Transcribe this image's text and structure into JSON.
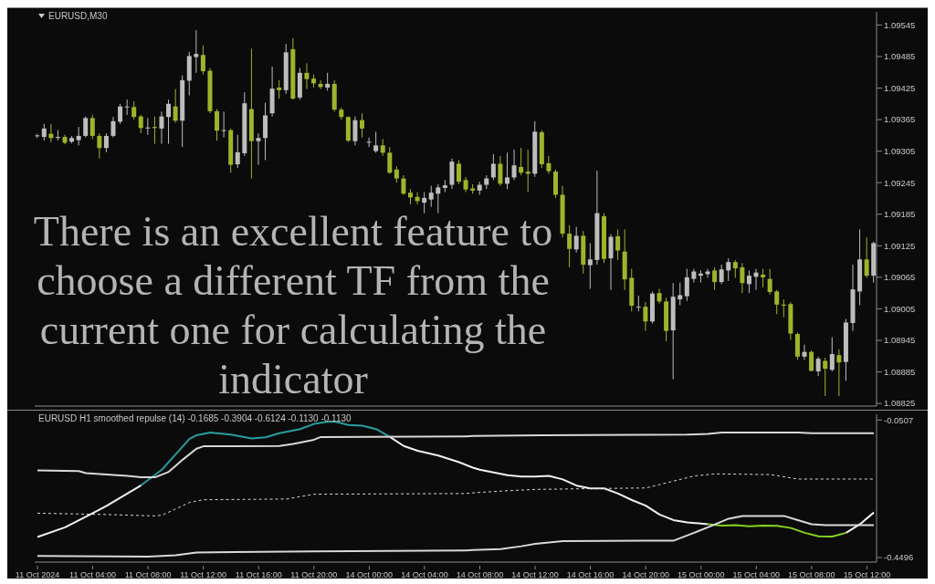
{
  "chart_data": [
    {
      "type": "candlestick",
      "title": "EURUSD,M30",
      "annotations": [
        "There is an excellent feature to choose a different TF from the current one for calculating the indicator"
      ],
      "categories": [
        null,
        null,
        null,
        null,
        null,
        null,
        null,
        null,
        null,
        null,
        null,
        null,
        null,
        null,
        null,
        null,
        null,
        null,
        null,
        null,
        null,
        null,
        null,
        null,
        null,
        null,
        null,
        null,
        null,
        null,
        null,
        null,
        null,
        null,
        null,
        null,
        null,
        null,
        null,
        null,
        null,
        null,
        null,
        null,
        null,
        null,
        null,
        null,
        null,
        null,
        null,
        null,
        null,
        null,
        null,
        null,
        null,
        null,
        null,
        null,
        null,
        null,
        null,
        null,
        null,
        null,
        null,
        null,
        null,
        null,
        null,
        null,
        null,
        null,
        null,
        null,
        null,
        null,
        null,
        null,
        null,
        null,
        null,
        null,
        null,
        null,
        null,
        null,
        null,
        null,
        null,
        null,
        null,
        null,
        null,
        null,
        null,
        null,
        null,
        null,
        null,
        null,
        null,
        null,
        null,
        null,
        null,
        null,
        null,
        null,
        null,
        null,
        null,
        null,
        null,
        null,
        null,
        null,
        null,
        null,
        null,
        null
      ],
      "ohlc": [
        [
          1.09334,
          1.09338,
          1.0933,
          1.09335
        ],
        [
          1.09332,
          1.09357,
          1.09325,
          1.09348
        ],
        [
          1.09338,
          1.09357,
          1.09322,
          1.0933
        ],
        [
          1.0933,
          1.09345,
          1.09325,
          1.09332
        ],
        [
          1.09332,
          1.09336,
          1.09318,
          1.09321
        ],
        [
          1.09323,
          1.09334,
          1.0932,
          1.0933
        ],
        [
          1.09326,
          1.09351,
          1.09316,
          1.09334
        ],
        [
          1.09334,
          1.09371,
          1.09331,
          1.09368
        ],
        [
          1.09368,
          1.09374,
          1.09328,
          1.09334
        ],
        [
          1.09334,
          1.09339,
          1.09291,
          1.09311
        ],
        [
          1.09311,
          1.09339,
          1.09303,
          1.09334
        ],
        [
          1.09334,
          1.0937,
          1.09331,
          1.09362
        ],
        [
          1.09361,
          1.09395,
          1.09357,
          1.0939
        ],
        [
          1.09389,
          1.09403,
          1.09374,
          1.0939
        ],
        [
          1.09389,
          1.094,
          1.09365,
          1.0937
        ],
        [
          1.09371,
          1.09374,
          1.09339,
          1.09349
        ],
        [
          1.09349,
          1.09368,
          1.09336,
          1.0935
        ],
        [
          1.09351,
          1.09371,
          1.09319,
          1.09349
        ],
        [
          1.09348,
          1.0938,
          1.09319,
          1.09371
        ],
        [
          1.0937,
          1.09403,
          1.09319,
          1.09395
        ],
        [
          1.0939,
          1.09423,
          1.09359,
          1.09363
        ],
        [
          1.09363,
          1.09449,
          1.09313,
          1.0944
        ],
        [
          1.09439,
          1.09494,
          1.09411,
          1.09486
        ],
        [
          1.09484,
          1.09535,
          1.09454,
          1.0949
        ],
        [
          1.09488,
          1.09506,
          1.09451,
          1.09457
        ],
        [
          1.09458,
          1.09463,
          1.09377,
          1.09381
        ],
        [
          1.09381,
          1.09385,
          1.09325,
          1.09344
        ],
        [
          1.09344,
          1.0938,
          1.09331,
          1.09345
        ],
        [
          1.09345,
          1.09348,
          1.09264,
          1.09279
        ],
        [
          1.0928,
          1.09336,
          1.09273,
          1.09303
        ],
        [
          1.09301,
          1.09417,
          1.09296,
          1.09396
        ],
        [
          1.09385,
          1.095,
          1.09253,
          1.09324
        ],
        [
          1.09324,
          1.09339,
          1.09279,
          1.0933
        ],
        [
          1.0933,
          1.09397,
          1.09288,
          1.09373
        ],
        [
          1.09377,
          1.09466,
          1.09371,
          1.09424
        ],
        [
          1.09426,
          1.0944,
          1.09405,
          1.09421
        ],
        [
          1.09421,
          1.09509,
          1.09414,
          1.09493
        ],
        [
          1.09499,
          1.0952,
          1.09403,
          1.09405
        ],
        [
          1.09407,
          1.09463,
          1.09403,
          1.09454
        ],
        [
          1.09454,
          1.09472,
          1.09423,
          1.09442
        ],
        [
          1.09443,
          1.09451,
          1.09426,
          1.09434
        ],
        [
          1.09433,
          1.0944,
          1.09423,
          1.09427
        ],
        [
          1.09426,
          1.09454,
          1.0942,
          1.09433
        ],
        [
          1.09433,
          1.0944,
          1.0938,
          1.09384
        ],
        [
          1.09384,
          1.09388,
          1.09365,
          1.0937
        ],
        [
          1.0937,
          1.09371,
          1.09322,
          1.09325
        ],
        [
          1.09324,
          1.09371,
          1.09316,
          1.09364
        ],
        [
          1.09364,
          1.09377,
          1.09331,
          1.09348
        ],
        [
          1.09322,
          1.09331,
          1.09313,
          1.09323
        ],
        [
          1.09305,
          1.09342,
          1.09302,
          1.09316
        ],
        [
          1.09316,
          1.09328,
          1.09296,
          1.09302
        ],
        [
          1.09302,
          1.09313,
          1.09262,
          1.09264
        ],
        [
          1.0927,
          1.09276,
          1.09245,
          1.09253
        ],
        [
          1.09253,
          1.09259,
          1.09222,
          1.09224
        ],
        [
          1.09226,
          1.09233,
          1.09204,
          1.09217
        ],
        [
          1.09218,
          1.09227,
          1.09204,
          1.0921
        ],
        [
          1.09207,
          1.09227,
          1.09187,
          1.09216
        ],
        [
          1.09213,
          1.09239,
          1.09199,
          1.09226
        ],
        [
          1.09224,
          1.09242,
          1.09187,
          1.09236
        ],
        [
          1.09235,
          1.0925,
          1.09227,
          1.0924
        ],
        [
          1.09241,
          1.09291,
          1.09233,
          1.09285
        ],
        [
          1.09281,
          1.09288,
          1.09242,
          1.09247
        ],
        [
          1.0925,
          1.09256,
          1.09227,
          1.09232
        ],
        [
          1.09234,
          1.09242,
          1.09224,
          1.0923
        ],
        [
          1.0923,
          1.09247,
          1.09222,
          1.09241
        ],
        [
          1.09241,
          1.09259,
          1.09233,
          1.09253
        ],
        [
          1.09255,
          1.09299,
          1.0925,
          1.09281
        ],
        [
          1.09281,
          1.09296,
          1.09239,
          1.09243
        ],
        [
          1.09243,
          1.09302,
          1.09233,
          1.09255
        ],
        [
          1.09255,
          1.09308,
          1.0925,
          1.09278
        ],
        [
          1.09275,
          1.09311,
          1.09259,
          1.09264
        ],
        [
          1.09266,
          1.09308,
          1.09227,
          1.09262
        ],
        [
          1.09262,
          1.09362,
          1.09256,
          1.09342
        ],
        [
          1.09341,
          1.09345,
          1.09273,
          1.0928
        ],
        [
          1.09282,
          1.09296,
          1.09262,
          1.09267
        ],
        [
          1.09266,
          1.0927,
          1.09216,
          1.09222
        ],
        [
          1.09222,
          1.09239,
          1.09141,
          1.09148
        ],
        [
          1.09148,
          1.09164,
          1.09084,
          1.09119
        ],
        [
          1.09118,
          1.09161,
          1.09112,
          1.09144
        ],
        [
          1.09144,
          1.09153,
          1.09072,
          1.09089
        ],
        [
          1.09088,
          1.0913,
          1.09043,
          1.09099
        ],
        [
          1.09098,
          1.09268,
          1.09089,
          1.09187
        ],
        [
          1.09181,
          1.09187,
          1.09092,
          1.091
        ],
        [
          1.09101,
          1.09147,
          1.09041,
          1.09142
        ],
        [
          1.09143,
          1.09156,
          1.09098,
          1.09116
        ],
        [
          1.09114,
          1.09156,
          1.09041,
          1.09061
        ],
        [
          1.09064,
          1.09081,
          1.09,
          1.09011
        ],
        [
          1.09008,
          1.0903,
          1.09,
          1.09009
        ],
        [
          1.09009,
          1.09018,
          1.08963,
          1.08981
        ],
        [
          1.08981,
          1.09038,
          1.08977,
          1.09034
        ],
        [
          1.09035,
          1.09043,
          1.09015,
          1.09019
        ],
        [
          1.09019,
          1.09026,
          1.08943,
          1.08963
        ],
        [
          1.08964,
          1.09054,
          1.08871,
          1.09028
        ],
        [
          1.09023,
          1.09055,
          1.09012,
          1.09031
        ],
        [
          1.09029,
          1.09081,
          1.0902,
          1.09065
        ],
        [
          1.09062,
          1.09081,
          1.09055,
          1.09076
        ],
        [
          1.09068,
          1.09078,
          1.09055,
          1.09072
        ],
        [
          1.09071,
          1.09081,
          1.09064,
          1.09076
        ],
        [
          1.09078,
          1.09084,
          1.09041,
          1.09056
        ],
        [
          1.09056,
          1.09089,
          1.09052,
          1.0908
        ],
        [
          1.09078,
          1.09101,
          1.09058,
          1.09094
        ],
        [
          1.09094,
          1.09098,
          1.09064,
          1.09082
        ],
        [
          1.09084,
          1.09092,
          1.09035,
          1.09054
        ],
        [
          1.09052,
          1.09078,
          1.09035,
          1.09068
        ],
        [
          1.09066,
          1.09081,
          1.09041,
          1.09074
        ],
        [
          1.0907,
          1.09081,
          1.09046,
          1.09065
        ],
        [
          1.09062,
          1.09081,
          1.09032,
          1.09037
        ],
        [
          1.09038,
          1.09041,
          1.08995,
          1.09013
        ],
        [
          1.09013,
          1.09023,
          1.08989,
          1.09011
        ],
        [
          1.09014,
          1.09018,
          1.08946,
          1.08958
        ],
        [
          1.08957,
          1.0896,
          1.08908,
          1.08914
        ],
        [
          1.08914,
          1.08937,
          1.08908,
          1.08923
        ],
        [
          1.08923,
          1.08926,
          1.08886,
          1.08887
        ],
        [
          1.08886,
          1.08914,
          1.08877,
          1.0891
        ],
        [
          1.08906,
          1.08912,
          1.08839,
          1.08891
        ],
        [
          1.08889,
          1.08951,
          1.08886,
          1.08919
        ],
        [
          1.08917,
          1.08928,
          1.08839,
          1.08903
        ],
        [
          1.08904,
          1.08986,
          1.08868,
          1.08979
        ],
        [
          1.08978,
          1.09089,
          1.08963,
          1.09042
        ],
        [
          1.09038,
          1.09156,
          1.09012,
          1.09099
        ],
        [
          1.09099,
          1.09141,
          1.09064,
          1.09068
        ],
        [
          1.09068,
          1.09133,
          1.09055,
          1.0913
        ]
      ],
      "colors": [
        "#bdbdbd",
        "#bdbdbd",
        "#9db52a",
        "#bdbdbd",
        "#9db52a",
        "#bdbdbd",
        "#bdbdbd",
        "#bdbdbd",
        "#9db52a",
        "#9db52a",
        "#bdbdbd",
        "#bdbdbd",
        "#bdbdbd",
        "#bdbdbd",
        "#9db52a",
        "#9db52a",
        "#bdbdbd",
        "#9db52a",
        "#bdbdbd",
        "#bdbdbd",
        "#9db52a",
        "#bdbdbd",
        "#bdbdbd",
        "#bdbdbd",
        "#9db52a",
        "#9db52a",
        "#9db52a",
        "#bdbdbd",
        "#9db52a",
        "#bdbdbd",
        "#bdbdbd",
        "#9db52a",
        "#bdbdbd",
        "#bdbdbd",
        "#bdbdbd",
        "#9db52a",
        "#bdbdbd",
        "#9db52a",
        "#bdbdbd",
        "#9db52a",
        "#9db52a",
        "#9db52a",
        "#bdbdbd",
        "#9db52a",
        "#9db52a",
        "#9db52a",
        "#bdbdbd",
        "#9db52a",
        "#bdbdbd",
        "#bdbdbd",
        "#9db52a",
        "#9db52a",
        "#9db52a",
        "#9db52a",
        "#9db52a",
        "#9db52a",
        "#bdbdbd",
        "#bdbdbd",
        "#bdbdbd",
        "#bdbdbd",
        "#bdbdbd",
        "#9db52a",
        "#9db52a",
        "#9db52a",
        "#bdbdbd",
        "#bdbdbd",
        "#bdbdbd",
        "#9db52a",
        "#bdbdbd",
        "#bdbdbd",
        "#9db52a",
        "#9db52a",
        "#bdbdbd",
        "#9db52a",
        "#9db52a",
        "#9db52a",
        "#9db52a",
        "#9db52a",
        "#bdbdbd",
        "#9db52a",
        "#bdbdbd",
        "#bdbdbd",
        "#9db52a",
        "#bdbdbd",
        "#9db52a",
        "#9db52a",
        "#9db52a",
        "#bdbdbd",
        "#9db52a",
        "#bdbdbd",
        "#9db52a",
        "#9db52a",
        "#bdbdbd",
        "#bdbdbd",
        "#bdbdbd",
        "#bdbdbd",
        "#bdbdbd",
        "#bdbdbd",
        "#9db52a",
        "#bdbdbd",
        "#bdbdbd",
        "#9db52a",
        "#9db52a",
        "#bdbdbd",
        "#bdbdbd",
        "#9db52a",
        "#9db52a",
        "#9db52a",
        "#9db52a",
        "#9db52a",
        "#9db52a",
        "#bdbdbd",
        "#9db52a",
        "#bdbdbd",
        "#9db52a",
        "#bdbdbd",
        "#9db52a",
        "#bdbdbd",
        "#bdbdbd",
        "#bdbdbd",
        "#9db52a",
        "#bdbdbd"
      ],
      "ylim": [
        1.0882,
        1.0957
      ],
      "yticks": [
        1.08825,
        1.08885,
        1.08945,
        1.09005,
        1.09065,
        1.09125,
        1.09185,
        1.09245,
        1.09305,
        1.09365,
        1.09425,
        1.09485,
        1.09545
      ],
      "tick_labels": "y"
    },
    {
      "type": "line",
      "title": "EURUSD H1 smoothed repulse (14) -0.1685 -0.3904 -0.6124 -0.1130 -0.1130",
      "categories": [
        "11 Oct 2024",
        null,
        null,
        null,
        null,
        null,
        null,
        null,
        "11 Oct 04:00",
        null,
        null,
        null,
        null,
        null,
        null,
        null,
        "11 Oct 08:00",
        null,
        null,
        null,
        null,
        null,
        null,
        null,
        "11 Oct 12:00",
        null,
        null,
        null,
        null,
        null,
        null,
        null,
        "11 Oct 16:00",
        null,
        null,
        null,
        null,
        null,
        null,
        null,
        "11 Oct 20:00",
        null,
        null,
        null,
        null,
        null,
        null,
        null,
        "14 Oct 00:00",
        null,
        null,
        null,
        null,
        null,
        null,
        null,
        "14 Oct 04:00",
        null,
        null,
        null,
        null,
        null,
        null,
        null,
        "14 Oct 08:00",
        null,
        null,
        null,
        null,
        null,
        null,
        null,
        "14 Oct 12:00",
        null,
        null,
        null,
        null,
        null,
        null,
        null,
        "14 Oct 16:00",
        null,
        null,
        null,
        null,
        null,
        null,
        null,
        "14 Oct 20:00",
        null,
        null,
        null,
        null,
        null,
        null,
        null,
        "15 Oct 00:00",
        null,
        null,
        null,
        null,
        null,
        null,
        null,
        "15 Oct 04:00",
        null,
        null,
        null,
        null,
        null,
        null,
        null,
        "15 Oct 08:00",
        null,
        null,
        null,
        null,
        null,
        null,
        null,
        "15 Oct 12:00",
        null
      ],
      "series": [
        {
          "color": "#f0f0f0",
          "values": [
            -0.39,
            null,
            null,
            null,
            -0.362,
            null,
            null,
            null,
            -0.321,
            null,
            -0.3,
            null,
            -0.276,
            null,
            null,
            -0.24,
            null,
            null,
            null,
            null,
            null,
            null,
            null,
            null,
            null,
            null,
            null,
            null,
            null,
            null,
            null,
            null,
            null,
            null,
            null,
            null,
            null,
            null,
            null,
            null,
            null,
            null,
            null,
            null,
            null,
            null,
            null,
            null,
            null,
            null,
            null,
            null,
            null,
            null,
            null,
            null,
            null,
            null,
            null,
            null,
            null,
            null,
            null,
            null,
            null,
            null,
            null,
            null,
            null,
            null,
            null,
            null,
            null,
            null,
            null,
            null,
            null,
            null,
            null,
            null,
            null,
            null,
            null,
            null,
            null,
            null,
            null,
            null,
            null,
            null,
            null,
            null,
            null,
            null,
            null,
            null,
            null,
            null,
            null,
            null,
            null,
            null,
            null,
            null,
            null,
            null,
            null,
            null,
            null,
            null,
            null,
            null,
            null,
            null,
            null,
            null,
            null,
            null,
            null,
            null,
            null,
            null
          ]
        },
        {
          "color": "#2a9d9d",
          "values": [
            null,
            null,
            null,
            null,
            null,
            null,
            null,
            null,
            null,
            null,
            null,
            null,
            null,
            null,
            null,
            -0.24,
            null,
            null,
            -0.195,
            null,
            -0.15,
            null,
            -0.105,
            -0.095,
            null,
            -0.087,
            null,
            null,
            -0.093,
            null,
            null,
            -0.104,
            null,
            -0.101,
            null,
            -0.089,
            null,
            null,
            -0.077,
            null,
            -0.062,
            null,
            -0.056,
            -0.055,
            null,
            -0.065,
            null,
            -0.067,
            null,
            -0.077,
            null,
            -0.1,
            null,
            null,
            null,
            null,
            null,
            null,
            null,
            null,
            null,
            null,
            null,
            null,
            null,
            null,
            null,
            null,
            null,
            null,
            null,
            null,
            null,
            null,
            null,
            null,
            null,
            null,
            null,
            null,
            null,
            null,
            null,
            null,
            null,
            null,
            null,
            null,
            null,
            null,
            null,
            null,
            null,
            null,
            null,
            null,
            null,
            null,
            null,
            null,
            null,
            null,
            null,
            null,
            null,
            null,
            null,
            null,
            null,
            null,
            null,
            null,
            null,
            null,
            null,
            null,
            null,
            null,
            null,
            null,
            null,
            null
          ]
        },
        {
          "color": "#f0f0f0",
          "values": [
            null,
            null,
            null,
            null,
            null,
            null,
            null,
            null,
            null,
            null,
            null,
            null,
            null,
            null,
            null,
            null,
            null,
            null,
            null,
            null,
            null,
            null,
            null,
            null,
            null,
            null,
            null,
            null,
            null,
            null,
            null,
            null,
            null,
            null,
            null,
            null,
            null,
            null,
            null,
            null,
            null,
            null,
            null,
            null,
            null,
            null,
            null,
            null,
            null,
            null,
            null,
            -0.1,
            null,
            -0.126,
            null,
            -0.14,
            null,
            null,
            -0.154,
            null,
            null,
            -0.173,
            null,
            -0.189,
            -0.195,
            null,
            -0.203,
            null,
            -0.211,
            null,
            -0.215,
            null,
            -0.215,
            null,
            -0.213,
            null,
            -0.223,
            null,
            -0.241,
            null,
            -0.249,
            null,
            -0.249,
            null,
            -0.264,
            null,
            -0.283,
            null,
            -0.299,
            null,
            -0.325,
            null,
            -0.341,
            null,
            -0.348,
            null,
            -0.351,
            -0.353,
            null,
            null,
            null,
            null,
            null,
            null,
            null,
            null,
            null,
            null,
            null,
            null,
            null,
            null,
            null,
            null,
            null,
            null,
            null,
            null,
            null,
            null,
            null,
            null
          ]
        },
        {
          "color": "#86d21e",
          "values": [
            null,
            null,
            null,
            null,
            null,
            null,
            null,
            null,
            null,
            null,
            null,
            null,
            null,
            null,
            null,
            null,
            null,
            null,
            null,
            null,
            null,
            null,
            null,
            null,
            null,
            null,
            null,
            null,
            null,
            null,
            null,
            null,
            null,
            null,
            null,
            null,
            null,
            null,
            null,
            null,
            null,
            null,
            null,
            null,
            null,
            null,
            null,
            null,
            null,
            null,
            null,
            null,
            null,
            null,
            null,
            null,
            null,
            null,
            null,
            null,
            null,
            null,
            null,
            null,
            null,
            null,
            null,
            null,
            null,
            null,
            null,
            null,
            null,
            null,
            null,
            null,
            null,
            null,
            null,
            null,
            null,
            null,
            null,
            null,
            null,
            null,
            null,
            null,
            null,
            null,
            null,
            null,
            null,
            null,
            null,
            null,
            null,
            -0.353,
            null,
            -0.357,
            null,
            -0.356,
            null,
            -0.359,
            null,
            -0.357,
            null,
            -0.358,
            null,
            -0.364,
            null,
            -0.378,
            null,
            -0.388,
            null,
            -0.389,
            null,
            -0.378,
            null,
            null,
            null,
            null
          ]
        },
        {
          "color": "#f0f0f0",
          "values": [
            null,
            null,
            null,
            null,
            null,
            null,
            null,
            null,
            null,
            null,
            null,
            null,
            null,
            null,
            null,
            null,
            null,
            null,
            null,
            null,
            null,
            null,
            null,
            null,
            null,
            null,
            null,
            null,
            null,
            null,
            null,
            null,
            null,
            null,
            null,
            null,
            null,
            null,
            null,
            null,
            null,
            null,
            null,
            null,
            null,
            null,
            null,
            null,
            null,
            null,
            null,
            null,
            null,
            null,
            null,
            null,
            null,
            null,
            null,
            null,
            null,
            null,
            null,
            null,
            null,
            null,
            null,
            null,
            null,
            null,
            null,
            null,
            null,
            null,
            null,
            null,
            null,
            null,
            null,
            null,
            null,
            null,
            null,
            null,
            null,
            null,
            null,
            null,
            null,
            null,
            null,
            null,
            null,
            null,
            null,
            null,
            null,
            null,
            null,
            null,
            null,
            null,
            null,
            null,
            null,
            null,
            null,
            null,
            null,
            null,
            null,
            null,
            null,
            null,
            null,
            null,
            null,
            -0.378,
            null,
            -0.353,
            null,
            -0.319
          ]
        },
        {
          "color": "#d8d8d8",
          "values": [
            -0.197,
            null,
            null,
            null,
            null,
            null,
            -0.199,
            -0.205,
            null,
            null,
            null,
            null,
            null,
            -0.213,
            null,
            -0.217,
            null,
            -0.217,
            null,
            -0.201,
            null,
            -0.166,
            null,
            -0.134,
            -0.127,
            null,
            null,
            null,
            null,
            null,
            null,
            null,
            null,
            null,
            null,
            -0.126,
            null,
            -0.12,
            null,
            null,
            -0.108,
            -0.1,
            null,
            null,
            null,
            null,
            null,
            null,
            null,
            null,
            null,
            null,
            null,
            null,
            null,
            null,
            null,
            null,
            null,
            null,
            null,
            null,
            -0.098,
            -0.097,
            null,
            null,
            null,
            null,
            null,
            null,
            null,
            null,
            null,
            -0.095,
            null,
            null,
            null,
            null,
            null,
            null,
            null,
            null,
            null,
            null,
            null,
            null,
            null,
            null,
            null,
            null,
            null,
            null,
            null,
            null,
            -0.093,
            null,
            null,
            -0.091,
            null,
            -0.087,
            null,
            null,
            null,
            null,
            null,
            null,
            null,
            null,
            null,
            null,
            -0.087,
            null,
            -0.089,
            null,
            null,
            null,
            null,
            null,
            null,
            null,
            null,
            -0.089
          ]
        },
        {
          "color": "#d8d8d8",
          "line_style": "dashed",
          "values": [
            -0.321,
            null,
            null,
            null,
            null,
            null,
            null,
            null,
            null,
            null,
            -0.325,
            null,
            null,
            null,
            null,
            null,
            null,
            -0.329,
            -0.327,
            null,
            -0.309,
            null,
            -0.29,
            null,
            -0.282,
            null,
            null,
            null,
            null,
            null,
            null,
            null,
            null,
            null,
            null,
            null,
            -0.28,
            null,
            null,
            null,
            -0.266,
            null,
            null,
            null,
            null,
            null,
            null,
            null,
            null,
            null,
            null,
            null,
            null,
            null,
            null,
            null,
            null,
            null,
            null,
            null,
            null,
            null,
            -0.264,
            -0.262,
            null,
            null,
            null,
            -0.257,
            null,
            null,
            null,
            null,
            -0.252,
            null,
            null,
            null,
            null,
            null,
            null,
            null,
            null,
            null,
            null,
            null,
            null,
            null,
            null,
            -0.248,
            -0.248,
            null,
            -0.238,
            null,
            null,
            -0.223,
            null,
            -0.213,
            null,
            null,
            -0.207,
            null,
            null,
            null,
            null,
            null,
            null,
            null,
            -0.209,
            null,
            null,
            null,
            -0.222,
            null,
            null,
            null,
            null,
            null,
            null,
            null,
            null,
            null,
            null,
            -0.222
          ]
        },
        {
          "color": "#d8d8d8",
          "values": [
            -0.445,
            null,
            null,
            null,
            null,
            null,
            null,
            null,
            null,
            null,
            null,
            null,
            null,
            null,
            null,
            null,
            -0.447,
            null,
            null,
            null,
            -0.443,
            null,
            null,
            -0.435,
            null,
            null,
            null,
            null,
            null,
            null,
            null,
            null,
            null,
            null,
            null,
            null,
            null,
            null,
            null,
            null,
            -0.432,
            null,
            null,
            null,
            null,
            null,
            null,
            null,
            null,
            null,
            null,
            null,
            null,
            null,
            null,
            null,
            null,
            null,
            null,
            null,
            null,
            null,
            -0.429,
            -0.428,
            null,
            null,
            null,
            -0.425,
            null,
            null,
            -0.417,
            null,
            -0.41,
            null,
            null,
            null,
            -0.402,
            null,
            null,
            null,
            null,
            null,
            null,
            null,
            null,
            null,
            null,
            null,
            -0.401,
            null,
            null,
            null,
            -0.401,
            null,
            null,
            -0.378,
            null,
            -0.362,
            null,
            null,
            -0.337,
            null,
            -0.329,
            null,
            null,
            null,
            null,
            null,
            -0.329,
            null,
            -0.341,
            null,
            -0.353,
            null,
            -0.356,
            null,
            null,
            null,
            null,
            null,
            null,
            -0.356
          ]
        }
      ],
      "ylim": [
        -0.463,
        -0.034
      ],
      "yticks": [
        -0.4496,
        -0.0507
      ]
    }
  ]
}
